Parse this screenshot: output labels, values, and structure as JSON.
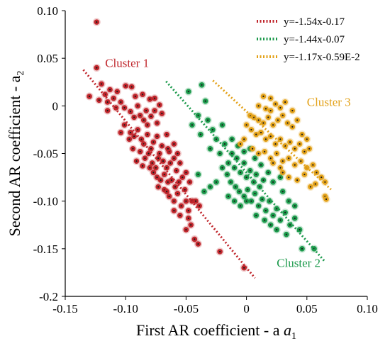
{
  "chart_data": {
    "type": "scatter",
    "xlabel": "First AR coefficient - a",
    "xlabel_sub": "1",
    "ylabel": "Second AR coefficient - a",
    "ylabel_sub": "2",
    "xlim": [
      -0.15,
      0.1
    ],
    "ylim": [
      -0.2,
      0.1
    ],
    "xticks": [
      "-0.15",
      "-0.10",
      "-0.05",
      "0",
      "0.05",
      "0.10"
    ],
    "yticks": [
      "0.10",
      "0.05",
      "0",
      "-0.05",
      "-0.10",
      "-0.15",
      "-0.2"
    ],
    "grid": false,
    "legend_position": "top-right",
    "series": [
      {
        "name": "Cluster 1",
        "color": "#c0262c",
        "fit_label": "y=-1.54x-0.17",
        "fit_x": [
          -0.135,
          0.007
        ],
        "points": [
          [
            -0.124,
            0.088
          ],
          [
            -0.124,
            0.04
          ],
          [
            -0.13,
            0.01
          ],
          [
            -0.12,
            0.023
          ],
          [
            -0.117,
            0.012
          ],
          [
            -0.113,
            0.017
          ],
          [
            -0.11,
            0.008
          ],
          [
            -0.122,
            0.006
          ],
          [
            -0.115,
            0.004
          ],
          [
            -0.107,
            0.015
          ],
          [
            -0.104,
            0.004
          ],
          [
            -0.1,
            0.021
          ],
          [
            -0.095,
            0.02
          ],
          [
            -0.092,
            0.01
          ],
          [
            -0.09,
            0.0
          ],
          [
            -0.086,
            0.012
          ],
          [
            -0.08,
            0.007
          ],
          [
            -0.083,
            -0.005
          ],
          [
            -0.076,
            0.008
          ],
          [
            -0.072,
            0.001
          ],
          [
            -0.115,
            -0.005
          ],
          [
            -0.108,
            -0.002
          ],
          [
            -0.101,
            -0.002
          ],
          [
            -0.096,
            -0.006
          ],
          [
            -0.093,
            -0.012
          ],
          [
            -0.088,
            -0.01
          ],
          [
            -0.085,
            -0.015
          ],
          [
            -0.082,
            -0.02
          ],
          [
            -0.079,
            -0.011
          ],
          [
            -0.076,
            -0.005
          ],
          [
            -0.074,
            -0.018
          ],
          [
            -0.07,
            -0.008
          ],
          [
            -0.101,
            -0.02
          ],
          [
            -0.096,
            -0.028
          ],
          [
            -0.093,
            -0.032
          ],
          [
            -0.09,
            -0.025
          ],
          [
            -0.087,
            -0.035
          ],
          [
            -0.085,
            -0.04
          ],
          [
            -0.082,
            -0.03
          ],
          [
            -0.079,
            -0.045
          ],
          [
            -0.077,
            -0.038
          ],
          [
            -0.074,
            -0.032
          ],
          [
            -0.072,
            -0.05
          ],
          [
            -0.07,
            -0.042
          ],
          [
            -0.066,
            -0.03
          ],
          [
            -0.064,
            -0.048
          ],
          [
            -0.088,
            -0.048
          ],
          [
            -0.084,
            -0.055
          ],
          [
            -0.081,
            -0.05
          ],
          [
            -0.078,
            -0.06
          ],
          [
            -0.075,
            -0.065
          ],
          [
            -0.073,
            -0.055
          ],
          [
            -0.069,
            -0.058
          ],
          [
            -0.066,
            -0.065
          ],
          [
            -0.063,
            -0.06
          ],
          [
            -0.06,
            -0.055
          ],
          [
            -0.058,
            -0.068
          ],
          [
            -0.08,
            -0.065
          ],
          [
            -0.077,
            -0.07
          ],
          [
            -0.074,
            -0.075
          ],
          [
            -0.071,
            -0.078
          ],
          [
            -0.068,
            -0.072
          ],
          [
            -0.065,
            -0.08
          ],
          [
            -0.062,
            -0.078
          ],
          [
            -0.059,
            -0.085
          ],
          [
            -0.056,
            -0.08
          ],
          [
            -0.053,
            -0.075
          ],
          [
            -0.051,
            -0.088
          ],
          [
            -0.068,
            -0.088
          ],
          [
            -0.064,
            -0.095
          ],
          [
            -0.06,
            -0.1
          ],
          [
            -0.057,
            -0.092
          ],
          [
            -0.054,
            -0.105
          ],
          [
            -0.05,
            -0.1
          ],
          [
            -0.048,
            -0.11
          ],
          [
            -0.045,
            -0.1
          ],
          [
            -0.065,
            -0.045
          ],
          [
            -0.06,
            -0.04
          ],
          [
            -0.057,
            -0.05
          ],
          [
            -0.055,
            -0.06
          ],
          [
            -0.05,
            -0.07
          ],
          [
            -0.047,
            -0.08
          ],
          [
            -0.06,
            -0.11
          ],
          [
            -0.055,
            -0.115
          ],
          [
            -0.048,
            -0.118
          ],
          [
            -0.042,
            -0.1
          ],
          [
            -0.039,
            -0.105
          ],
          [
            -0.046,
            -0.125
          ],
          [
            -0.05,
            -0.13
          ],
          [
            -0.043,
            -0.14
          ],
          [
            -0.04,
            -0.145
          ],
          [
            -0.022,
            -0.153
          ],
          [
            -0.002,
            -0.17
          ],
          [
            -0.097,
            -0.035
          ],
          [
            -0.104,
            -0.028
          ],
          [
            -0.091,
            -0.058
          ],
          [
            -0.086,
            -0.063
          ],
          [
            -0.073,
            -0.085
          ],
          [
            -0.066,
            -0.09
          ],
          [
            -0.094,
            -0.045
          ]
        ]
      },
      {
        "name": "Cluster 2",
        "color": "#1c9a4c",
        "fit_label": "y=-1.44x-0.07",
        "fit_x": [
          -0.0665,
          0.065
        ],
        "points": [
          [
            -0.048,
            0.015
          ],
          [
            -0.037,
            0.022
          ],
          [
            -0.034,
            0.005
          ],
          [
            -0.04,
            -0.01
          ],
          [
            -0.045,
            -0.02
          ],
          [
            -0.038,
            -0.03
          ],
          [
            -0.032,
            -0.015
          ],
          [
            -0.028,
            -0.025
          ],
          [
            -0.025,
            -0.035
          ],
          [
            -0.03,
            -0.045
          ],
          [
            -0.022,
            -0.05
          ],
          [
            -0.018,
            -0.04
          ],
          [
            -0.015,
            -0.06
          ],
          [
            -0.012,
            -0.05
          ],
          [
            -0.01,
            -0.065
          ],
          [
            -0.008,
            -0.055
          ],
          [
            -0.005,
            -0.07
          ],
          [
            -0.002,
            -0.06
          ],
          [
            0.0,
            -0.075
          ],
          [
            0.003,
            -0.068
          ],
          [
            0.006,
            -0.08
          ],
          [
            0.008,
            -0.072
          ],
          [
            0.011,
            -0.085
          ],
          [
            0.014,
            -0.078
          ],
          [
            -0.02,
            -0.065
          ],
          [
            -0.016,
            -0.072
          ],
          [
            -0.013,
            -0.08
          ],
          [
            -0.009,
            -0.085
          ],
          [
            -0.006,
            -0.09
          ],
          [
            -0.002,
            -0.095
          ],
          [
            0.001,
            -0.088
          ],
          [
            0.004,
            -0.1
          ],
          [
            0.007,
            -0.092
          ],
          [
            0.01,
            -0.105
          ],
          [
            0.013,
            -0.098
          ],
          [
            0.016,
            -0.11
          ],
          [
            0.019,
            -0.1
          ],
          [
            0.022,
            -0.115
          ],
          [
            0.025,
            -0.108
          ],
          [
            0.028,
            -0.12
          ],
          [
            0.032,
            -0.112
          ],
          [
            0.036,
            -0.125
          ],
          [
            0.04,
            -0.118
          ],
          [
            0.044,
            -0.13
          ],
          [
            -0.025,
            -0.08
          ],
          [
            -0.03,
            -0.085
          ],
          [
            -0.035,
            -0.09
          ],
          [
            -0.015,
            -0.095
          ],
          [
            -0.01,
            -0.1
          ],
          [
            -0.005,
            -0.105
          ],
          [
            0.0,
            -0.1
          ],
          [
            0.008,
            -0.115
          ],
          [
            0.015,
            -0.12
          ],
          [
            0.02,
            -0.125
          ],
          [
            0.025,
            -0.13
          ],
          [
            0.003,
            -0.045
          ],
          [
            0.007,
            -0.055
          ],
          [
            0.012,
            -0.062
          ],
          [
            0.018,
            -0.07
          ],
          [
            0.022,
            -0.08
          ],
          [
            -0.012,
            -0.035
          ],
          [
            -0.007,
            -0.042
          ],
          [
            -0.002,
            -0.048
          ],
          [
            0.03,
            -0.09
          ],
          [
            0.035,
            -0.1
          ],
          [
            0.04,
            -0.105
          ],
          [
            0.046,
            -0.15
          ],
          [
            0.056,
            -0.15
          ],
          [
            0.033,
            -0.135
          ],
          [
            -0.04,
            -0.072
          ],
          [
            0.028,
            -0.075
          ],
          [
            -0.02,
            -0.02
          ]
        ]
      },
      {
        "name": "Cluster 3",
        "color": "#e3a21a",
        "fit_label": "y=-1.17x-0.59E-2",
        "fit_x": [
          -0.0278,
          0.07
        ],
        "points": [
          [
            0.014,
            0.01
          ],
          [
            0.02,
            0.008
          ],
          [
            0.024,
            0.002
          ],
          [
            0.01,
            0.0
          ],
          [
            0.016,
            -0.003
          ],
          [
            0.02,
            -0.005
          ],
          [
            0.028,
            -0.002
          ],
          [
            0.032,
            0.004
          ],
          [
            0.006,
            -0.012
          ],
          [
            0.01,
            -0.015
          ],
          [
            0.014,
            -0.018
          ],
          [
            0.018,
            -0.012
          ],
          [
            0.022,
            -0.02
          ],
          [
            0.026,
            -0.015
          ],
          [
            0.03,
            -0.01
          ],
          [
            0.034,
            -0.018
          ],
          [
            0.038,
            -0.022
          ],
          [
            0.042,
            -0.015
          ],
          [
            0.004,
            -0.025
          ],
          [
            0.008,
            -0.03
          ],
          [
            0.012,
            -0.028
          ],
          [
            0.016,
            -0.035
          ],
          [
            0.02,
            -0.032
          ],
          [
            0.024,
            -0.04
          ],
          [
            0.028,
            -0.035
          ],
          [
            0.032,
            -0.042
          ],
          [
            0.036,
            -0.038
          ],
          [
            0.04,
            -0.045
          ],
          [
            0.044,
            -0.04
          ],
          [
            0.048,
            -0.048
          ],
          [
            0.052,
            -0.045
          ],
          [
            0.005,
            -0.045
          ],
          [
            0.01,
            -0.05
          ],
          [
            0.015,
            -0.048
          ],
          [
            0.02,
            -0.055
          ],
          [
            0.025,
            -0.05
          ],
          [
            0.03,
            -0.058
          ],
          [
            0.035,
            -0.055
          ],
          [
            0.04,
            -0.062
          ],
          [
            0.045,
            -0.058
          ],
          [
            0.05,
            -0.065
          ],
          [
            0.055,
            -0.062
          ],
          [
            0.058,
            -0.07
          ],
          [
            0.062,
            -0.075
          ],
          [
            0.065,
            -0.08
          ],
          [
            0.03,
            -0.07
          ],
          [
            0.035,
            -0.075
          ],
          [
            0.042,
            -0.078
          ],
          [
            0.048,
            -0.072
          ],
          [
            0.053,
            -0.085
          ],
          [
            0.057,
            -0.082
          ],
          [
            0.065,
            -0.095
          ],
          [
            0.066,
            -0.098
          ],
          [
            -0.002,
            -0.035
          ],
          [
            -0.005,
            -0.04
          ],
          [
            0.0,
            -0.02
          ],
          [
            0.003,
            -0.01
          ],
          [
            0.046,
            -0.03
          ],
          [
            0.05,
            -0.035
          ],
          [
            0.038,
            -0.005
          ],
          [
            0.028,
            -0.065
          ],
          [
            0.022,
            -0.06
          ]
        ]
      }
    ]
  }
}
